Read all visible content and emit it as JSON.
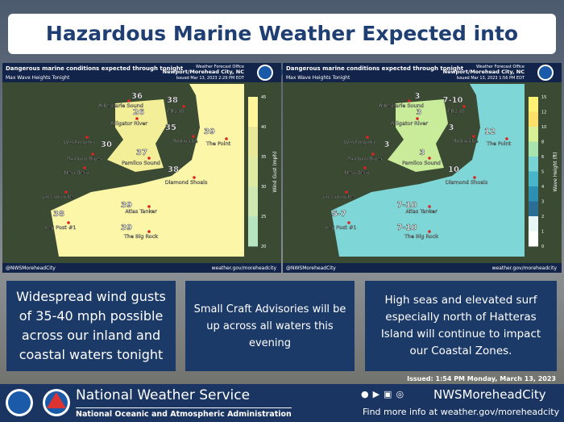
{
  "header": {
    "title": "Hazardous Marine Weather Expected into Midweek"
  },
  "maps": [
    {
      "headline": "Dangerous marine conditions expected through tonight",
      "subtitle": "Max Wave Heights Tonight",
      "office": "Weather Forecast Office",
      "office_name": "Newport/Morehead City, NC",
      "issued": "Issued Mar 13, 2023 2:29 PM EDT",
      "legend_title": "Wind Gust (mph)",
      "legend_ticks": [
        "45",
        "40",
        "35",
        "30",
        "25",
        "20"
      ],
      "values": [
        "36",
        "38",
        "26",
        "35",
        "39",
        "30",
        "37",
        "38",
        "39",
        "38",
        "39"
      ],
      "social": "@NWSMoreheadCity",
      "website": "weather.gov/moreheadcity"
    },
    {
      "headline": "Dangerous marine conditions expected through tonight",
      "subtitle": "Max Wave Heights Tonight",
      "office": "Weather Forecast Office",
      "office_name": "Newport/Morehead City, NC",
      "issued": "Issued Mar 13, 2023 1:56 PM EDT",
      "legend_title": "Wave Height (ft)",
      "legend_ticks": [
        "15",
        "12",
        "10",
        "8",
        "6",
        "5",
        "4",
        "3",
        "2",
        "1",
        "0"
      ],
      "values": [
        "3",
        "7-10",
        "3",
        "3",
        "12",
        "3",
        "3",
        "10",
        "7-10",
        "5-7",
        "7-10"
      ],
      "social": "@NWSMoreheadCity",
      "website": "weather.gov/moreheadcity"
    }
  ],
  "places": [
    "Albemarle Sound",
    "FR130",
    "Alligator River",
    "Rodanthe",
    "The Point",
    "Washington",
    "Pamlico River",
    "Pamlico Sound",
    "New Bern",
    "Diamond Shoals",
    "Jacksonville",
    "Atlas Tanker",
    "Key Post #1",
    "The Big Rock"
  ],
  "messages": [
    "Widespread wind gusts of 35-40 mph possible across our inland and coastal waters tonight",
    "Small Craft Advisories will be up across all waters this evening",
    "High seas and elevated surf especially north of Hatteras Island will continue to impact our Coastal Zones."
  ],
  "issued": "Issued: 1:54 PM Monday, March 13, 2023",
  "footer": {
    "agency": "National Weather Service",
    "parent": "National Oceanic and Atmospheric Administration",
    "handle": "NWSMoreheadCity",
    "info": "Find more info at weather.gov/moreheadcity"
  }
}
